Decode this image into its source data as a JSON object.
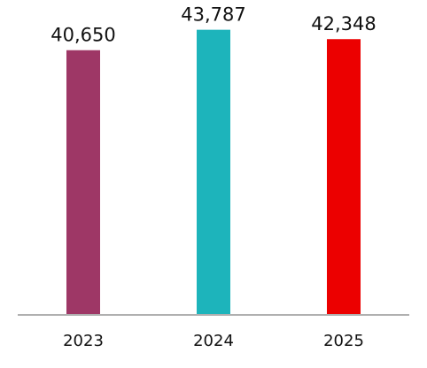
{
  "chart_data": {
    "type": "bar",
    "categories": [
      "2023",
      "2024",
      "2025"
    ],
    "values": [
      40650,
      43787,
      42348
    ],
    "value_labels": [
      "40,650",
      "43,787",
      "42,348"
    ],
    "colors": [
      "#9e3766",
      "#1db4bb",
      "#ec0000"
    ],
    "axis_color": "#b0b0b0",
    "ylim": [
      0,
      47000
    ],
    "grid": false,
    "legend": "none",
    "title": "",
    "xlabel": "",
    "ylabel": ""
  }
}
